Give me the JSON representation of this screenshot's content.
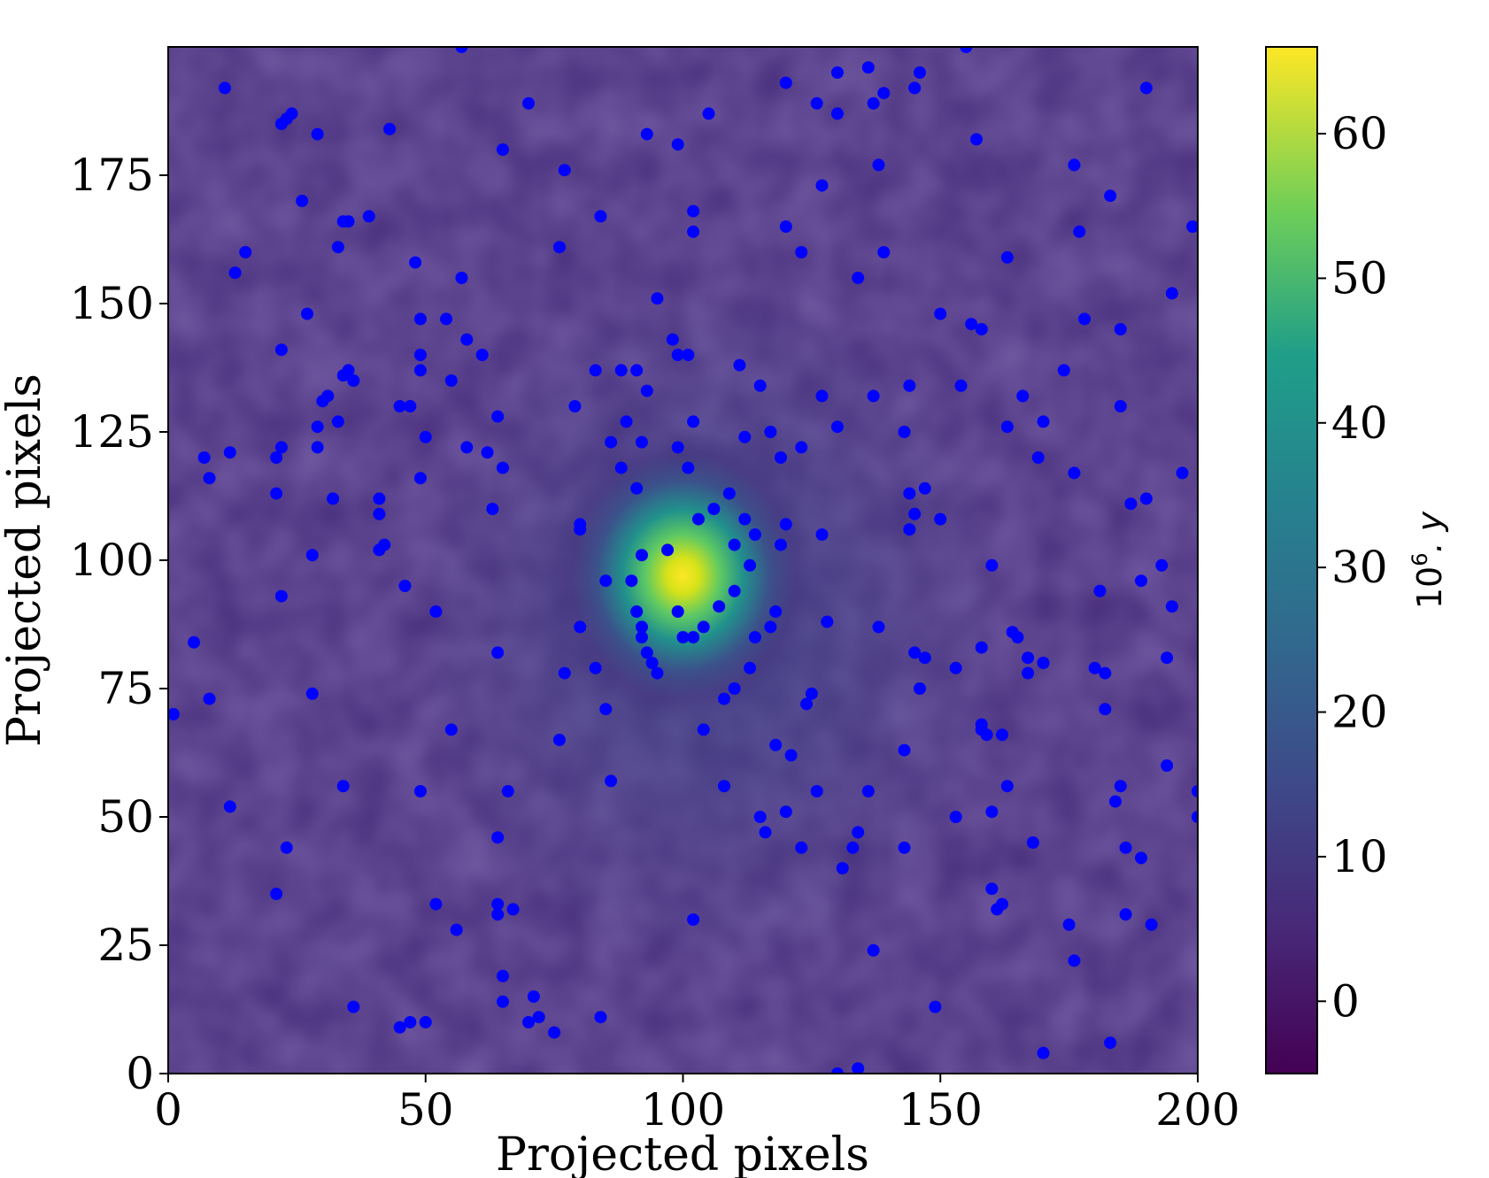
{
  "chart_data": {
    "type": "scatter",
    "background": "heatmap",
    "xlabel": "Projected pixels",
    "ylabel": "Projected pixels",
    "xlim": [
      0,
      200
    ],
    "ylim": [
      0,
      200
    ],
    "x_ticks": [
      "0",
      "50",
      "100",
      "150",
      "200"
    ],
    "y_ticks": [
      "0",
      "25",
      "50",
      "75",
      "100",
      "125",
      "150",
      "175"
    ],
    "x_tick_values": [
      0,
      50,
      100,
      150,
      200
    ],
    "y_tick_values": [
      0,
      25,
      50,
      75,
      100,
      125,
      150,
      175
    ],
    "grid": false,
    "colormap": "viridis",
    "colorbar": {
      "label_base": "10",
      "label_exp": "6",
      "label_var": ". y",
      "range": [
        -5,
        66
      ],
      "ticks": [
        "0",
        "10",
        "20",
        "30",
        "40",
        "50",
        "60"
      ],
      "tick_values": [
        0,
        10,
        20,
        30,
        40,
        50,
        60
      ]
    },
    "heatmap_peak": {
      "x": 100,
      "y": 97,
      "value": 66,
      "baseline": -1
    },
    "marker_color": "#0000ff",
    "points": [
      [
        1,
        70
      ],
      [
        5,
        84
      ],
      [
        7,
        120
      ],
      [
        8,
        116
      ],
      [
        8,
        73
      ],
      [
        11,
        192
      ],
      [
        12,
        52
      ],
      [
        12,
        121
      ],
      [
        13,
        156
      ],
      [
        15,
        160
      ],
      [
        21,
        120
      ],
      [
        21,
        113
      ],
      [
        21,
        35
      ],
      [
        22,
        141
      ],
      [
        22,
        122
      ],
      [
        22,
        93
      ],
      [
        22,
        185
      ],
      [
        23,
        186
      ],
      [
        23,
        44
      ],
      [
        24,
        187
      ],
      [
        26,
        170
      ],
      [
        27,
        148
      ],
      [
        28,
        74
      ],
      [
        28,
        101
      ],
      [
        29,
        126
      ],
      [
        29,
        183
      ],
      [
        29,
        122
      ],
      [
        30,
        131
      ],
      [
        31,
        132
      ],
      [
        32,
        112
      ],
      [
        33,
        161
      ],
      [
        33,
        127
      ],
      [
        34,
        166
      ],
      [
        34,
        136
      ],
      [
        34,
        56
      ],
      [
        35,
        166
      ],
      [
        35,
        137
      ],
      [
        36,
        135
      ],
      [
        36,
        13
      ],
      [
        39,
        167
      ],
      [
        41,
        109
      ],
      [
        41,
        112
      ],
      [
        41,
        102
      ],
      [
        42,
        103
      ],
      [
        43,
        184
      ],
      [
        45,
        9
      ],
      [
        45,
        130
      ],
      [
        46,
        95
      ],
      [
        47,
        10
      ],
      [
        47,
        130
      ],
      [
        48,
        158
      ],
      [
        49,
        137
      ],
      [
        49,
        140
      ],
      [
        49,
        147
      ],
      [
        49,
        55
      ],
      [
        49,
        116
      ],
      [
        50,
        10
      ],
      [
        50,
        124
      ],
      [
        52,
        90
      ],
      [
        52,
        33
      ],
      [
        54,
        147
      ],
      [
        55,
        135
      ],
      [
        55,
        67
      ],
      [
        56,
        28
      ],
      [
        57,
        155
      ],
      [
        57,
        200
      ],
      [
        58,
        143
      ],
      [
        58,
        122
      ],
      [
        61,
        140
      ],
      [
        62,
        121
      ],
      [
        63,
        110
      ],
      [
        64,
        128
      ],
      [
        64,
        46
      ],
      [
        64,
        82
      ],
      [
        64,
        31
      ],
      [
        64,
        33
      ],
      [
        65,
        19
      ],
      [
        65,
        14
      ],
      [
        65,
        180
      ],
      [
        65,
        118
      ],
      [
        66,
        55
      ],
      [
        67,
        32
      ],
      [
        70,
        10
      ],
      [
        70,
        189
      ],
      [
        71,
        15
      ],
      [
        72,
        11
      ],
      [
        75,
        8
      ],
      [
        76,
        65
      ],
      [
        76,
        161
      ],
      [
        77,
        176
      ],
      [
        77,
        78
      ],
      [
        79,
        130
      ],
      [
        80,
        107
      ],
      [
        80,
        106
      ],
      [
        80,
        87
      ],
      [
        83,
        79
      ],
      [
        83,
        137
      ],
      [
        84,
        167
      ],
      [
        84,
        11
      ],
      [
        85,
        96
      ],
      [
        85,
        71
      ],
      [
        86,
        123
      ],
      [
        86,
        57
      ],
      [
        88,
        118
      ],
      [
        88,
        137
      ],
      [
        89,
        127
      ],
      [
        90,
        96
      ],
      [
        91,
        114
      ],
      [
        91,
        137
      ],
      [
        91,
        90
      ],
      [
        92,
        101
      ],
      [
        92,
        123
      ],
      [
        92,
        87
      ],
      [
        92,
        85
      ],
      [
        93,
        82
      ],
      [
        93,
        183
      ],
      [
        93,
        133
      ],
      [
        94,
        80
      ],
      [
        95,
        78
      ],
      [
        95,
        151
      ],
      [
        97,
        102
      ],
      [
        98,
        143
      ],
      [
        99,
        90
      ],
      [
        99,
        140
      ],
      [
        99,
        181
      ],
      [
        99,
        122
      ],
      [
        100,
        85
      ],
      [
        101,
        118
      ],
      [
        101,
        140
      ],
      [
        102,
        168
      ],
      [
        102,
        164
      ],
      [
        102,
        127
      ],
      [
        102,
        30
      ],
      [
        102,
        85
      ],
      [
        103,
        108
      ],
      [
        104,
        67
      ],
      [
        104,
        87
      ],
      [
        105,
        187
      ],
      [
        106,
        110
      ],
      [
        107,
        91
      ],
      [
        108,
        73
      ],
      [
        108,
        56
      ],
      [
        109,
        113
      ],
      [
        110,
        75
      ],
      [
        110,
        103
      ],
      [
        110,
        94
      ],
      [
        111,
        138
      ],
      [
        112,
        124
      ],
      [
        112,
        108
      ],
      [
        113,
        79
      ],
      [
        113,
        99
      ],
      [
        114,
        85
      ],
      [
        114,
        105
      ],
      [
        115,
        134
      ],
      [
        115,
        50
      ],
      [
        116,
        47
      ],
      [
        117,
        125
      ],
      [
        117,
        87
      ],
      [
        118,
        64
      ],
      [
        118,
        90
      ],
      [
        119,
        120
      ],
      [
        119,
        103
      ],
      [
        120,
        193
      ],
      [
        120,
        165
      ],
      [
        120,
        107
      ],
      [
        120,
        51
      ],
      [
        121,
        62
      ],
      [
        123,
        160
      ],
      [
        123,
        122
      ],
      [
        123,
        44
      ],
      [
        124,
        72
      ],
      [
        125,
        74
      ],
      [
        126,
        189
      ],
      [
        126,
        55
      ],
      [
        127,
        132
      ],
      [
        127,
        173
      ],
      [
        127,
        105
      ],
      [
        128,
        88
      ],
      [
        130,
        0
      ],
      [
        130,
        195
      ],
      [
        130,
        187
      ],
      [
        130,
        126
      ],
      [
        131,
        40
      ],
      [
        133,
        44
      ],
      [
        134,
        1
      ],
      [
        134,
        47
      ],
      [
        134,
        155
      ],
      [
        136,
        55
      ],
      [
        136,
        196
      ],
      [
        137,
        189
      ],
      [
        137,
        24
      ],
      [
        137,
        132
      ],
      [
        138,
        177
      ],
      [
        138,
        87
      ],
      [
        139,
        191
      ],
      [
        139,
        160
      ],
      [
        143,
        125
      ],
      [
        143,
        63
      ],
      [
        143,
        44
      ],
      [
        144,
        113
      ],
      [
        144,
        106
      ],
      [
        144,
        134
      ],
      [
        145,
        82
      ],
      [
        145,
        109
      ],
      [
        145,
        192
      ],
      [
        146,
        75
      ],
      [
        146,
        195
      ],
      [
        147,
        114
      ],
      [
        147,
        81
      ],
      [
        149,
        13
      ],
      [
        150,
        108
      ],
      [
        150,
        148
      ],
      [
        153,
        50
      ],
      [
        153,
        79
      ],
      [
        154,
        134
      ],
      [
        155,
        200
      ],
      [
        156,
        146
      ],
      [
        157,
        182
      ],
      [
        158,
        83
      ],
      [
        158,
        68
      ],
      [
        158,
        145
      ],
      [
        158,
        67
      ],
      [
        159,
        66
      ],
      [
        160,
        51
      ],
      [
        160,
        99
      ],
      [
        160,
        36
      ],
      [
        161,
        32
      ],
      [
        162,
        66
      ],
      [
        162,
        33
      ],
      [
        163,
        159
      ],
      [
        163,
        126
      ],
      [
        163,
        56
      ],
      [
        164,
        86
      ],
      [
        165,
        85
      ],
      [
        166,
        132
      ],
      [
        167,
        81
      ],
      [
        167,
        78
      ],
      [
        168,
        45
      ],
      [
        169,
        120
      ],
      [
        170,
        127
      ],
      [
        170,
        4
      ],
      [
        170,
        80
      ],
      [
        174,
        137
      ],
      [
        175,
        29
      ],
      [
        176,
        177
      ],
      [
        176,
        117
      ],
      [
        176,
        22
      ],
      [
        177,
        164
      ],
      [
        178,
        147
      ],
      [
        180,
        79
      ],
      [
        181,
        94
      ],
      [
        182,
        78
      ],
      [
        182,
        71
      ],
      [
        183,
        6
      ],
      [
        183,
        171
      ],
      [
        184,
        53
      ],
      [
        185,
        56
      ],
      [
        185,
        130
      ],
      [
        185,
        145
      ],
      [
        186,
        44
      ],
      [
        186,
        31
      ],
      [
        187,
        111
      ],
      [
        189,
        96
      ],
      [
        189,
        42
      ],
      [
        190,
        112
      ],
      [
        190,
        192
      ],
      [
        191,
        29
      ],
      [
        193,
        99
      ],
      [
        194,
        81
      ],
      [
        194,
        60
      ],
      [
        195,
        152
      ],
      [
        195,
        91
      ],
      [
        197,
        117
      ],
      [
        199,
        165
      ],
      [
        200,
        55
      ],
      [
        200,
        50
      ]
    ]
  }
}
